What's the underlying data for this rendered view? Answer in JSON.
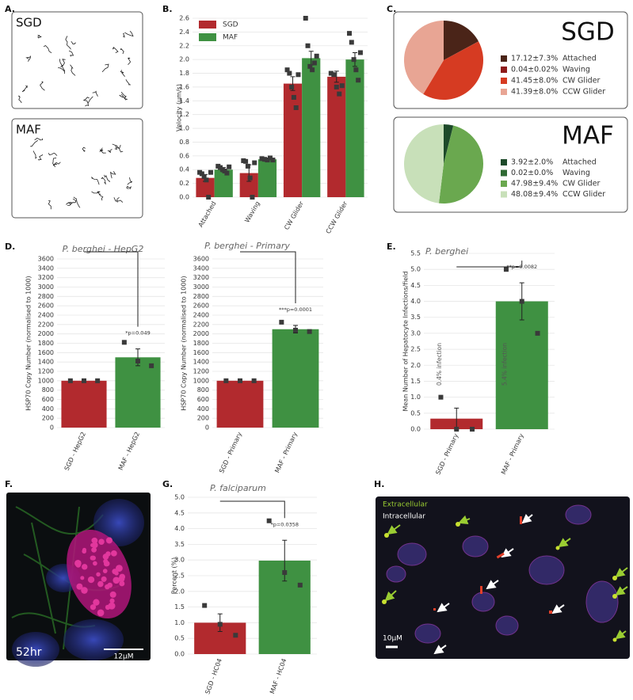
{
  "panel_labels": [
    "A.",
    "B.",
    "C.",
    "D.",
    "E.",
    "F.",
    "G.",
    "H."
  ],
  "images": {
    "A": {
      "labels": [
        "SGD",
        "MAF"
      ]
    },
    "F": {
      "labels": [
        "52hr",
        "12µM"
      ]
    },
    "H": {
      "labels": [
        "Extracellular",
        "Intracellular",
        "10µM"
      ]
    }
  },
  "chart_data": [
    {
      "type": "bar",
      "ylabel": "Velocity (µm/s)",
      "categories": [
        "Attached",
        "Waving",
        "CW Glider",
        "CCW Glider"
      ],
      "series": [
        {
          "name": "SGD",
          "color": "#b22a2e",
          "values": [
            0.28,
            0.35,
            1.65,
            1.75
          ],
          "errors": [
            0.05,
            0.12,
            0.1,
            0.08
          ],
          "points": [
            [
              0.36,
              0.34,
              0.3,
              0.25,
              0,
              0.36
            ],
            [
              0.53,
              0.52,
              0.45,
              0.28,
              0,
              0.5
            ],
            [
              1.85,
              1.8,
              1.6,
              1.45,
              1.3,
              1.78
            ],
            [
              1.8,
              1.78,
              1.6,
              1.5,
              1.62
            ]
          ]
        },
        {
          "name": "MAF",
          "color": "#3f9142",
          "values": [
            0.4,
            0.55,
            2.02,
            2
          ],
          "errors": [
            0.03,
            0.02,
            0.1,
            0.1
          ],
          "points": [
            [
              0.45,
              0.43,
              0.4,
              0.38,
              0.35,
              0.44
            ],
            [
              0.56,
              0.55,
              0.54,
              0.57,
              0.54
            ],
            [
              2.6,
              2.2,
              1.9,
              1.85,
              1.95,
              2.05
            ],
            [
              2.38,
              2.25,
              2,
              1.85,
              1.7,
              2.1
            ]
          ]
        }
      ],
      "ylim": [
        0,
        2.6
      ],
      "yticks": [
        {
          "value": 0,
          "label": "0.0"
        },
        0.2,
        0.4,
        0.6,
        0.8,
        {
          "value": 1,
          "label": "1.0"
        },
        1.2,
        1.4,
        1.6,
        1.8,
        {
          "value": 2,
          "label": "2.0"
        },
        2.2,
        2.4,
        2.6
      ],
      "grid": true,
      "legend": "upper left"
    },
    {
      "type": "pie",
      "title": "SGD",
      "categories": [
        "Attached",
        "Waving",
        "CW Glider",
        "CCW Glider"
      ],
      "values": [
        17.12,
        0.04,
        41.45,
        41.39
      ],
      "value_labels": [
        "17.12±7.3%",
        "0.04±0.02%",
        "41.45±8.0%",
        "41.39±8.0%"
      ],
      "colors": [
        "#4a2418",
        "#8e1b1b",
        "#d63b22",
        "#e8a594"
      ]
    },
    {
      "type": "pie",
      "title": "MAF",
      "categories": [
        "Attached",
        "Waving",
        "CW Glider",
        "CCW Glider"
      ],
      "values": [
        3.92,
        0.02,
        47.98,
        48.08
      ],
      "value_labels": [
        "3.92±2.0%",
        "0.02±0.0%",
        "47.98±9.4%",
        "48.08±9.4%"
      ],
      "colors": [
        "#1d4a2a",
        "#2f6a33",
        "#6aa84f",
        "#c8e0b9"
      ]
    },
    {
      "type": "bar",
      "title": "P. berghei - HepG2",
      "ylabel": "HSP70 Copy Number (normalised to 1000)",
      "categories": [
        "SGD - HepG2",
        "MAF - HepG2"
      ],
      "values": [
        1000,
        1500
      ],
      "errors": [
        0,
        180
      ],
      "points": [
        [
          1000,
          1000,
          1000
        ],
        [
          1820,
          1420,
          1320
        ]
      ],
      "colors": [
        "#b22a2e",
        "#3f9142"
      ],
      "annotation": "*p=0.049",
      "ylim": [
        0,
        3600
      ],
      "yticks": [
        0,
        200,
        400,
        600,
        800,
        1000,
        1200,
        1400,
        1600,
        1800,
        2000,
        2200,
        2400,
        2600,
        2800,
        3000,
        3200,
        3400,
        3600
      ],
      "grid": true
    },
    {
      "type": "bar",
      "title": "P. berghei - Primary",
      "ylabel": "HSP70 Copy Number (normalised to 1000)",
      "categories": [
        "SGD - Primary",
        "MAF - Primary"
      ],
      "values": [
        1000,
        2100
      ],
      "errors": [
        0,
        80
      ],
      "points": [
        [
          1000,
          1000,
          1000
        ],
        [
          2250,
          2080,
          2050
        ]
      ],
      "colors": [
        "#b22a2e",
        "#3f9142"
      ],
      "annotation": "***p=0.0001",
      "ylim": [
        0,
        3600
      ],
      "yticks": [
        0,
        200,
        400,
        600,
        800,
        1000,
        1200,
        1400,
        1600,
        1800,
        2000,
        2200,
        2400,
        2600,
        2800,
        3000,
        3200,
        3400,
        3600
      ],
      "grid": true
    },
    {
      "type": "bar",
      "title": "P. berghei",
      "ylabel": "Mean Number of Hepatocyte Infections/field",
      "categories": [
        "SGD - Primary",
        "MAF - Primary"
      ],
      "values": [
        0.33,
        4
      ],
      "errors": [
        0.33,
        0.58
      ],
      "points": [
        [
          1,
          0,
          0
        ],
        [
          5,
          4,
          3
        ]
      ],
      "colors": [
        "#b22a2e",
        "#3f9142"
      ],
      "annotation": "**p=0.0082",
      "notes": [
        "0.4% infection",
        "5.4% infection"
      ],
      "ylim": [
        0,
        5.5
      ],
      "yticks": [
        {
          "value": 0,
          "label": "0.0"
        },
        0.5,
        {
          "value": 1,
          "label": "1.0"
        },
        1.5,
        {
          "value": 2,
          "label": "2.0"
        },
        2.5,
        {
          "value": 3,
          "label": "3.0"
        },
        3.5,
        {
          "value": 4,
          "label": "4.0"
        },
        4.5,
        {
          "value": 5,
          "label": "5.0"
        },
        5.5
      ],
      "grid": true
    },
    {
      "type": "bar",
      "title": "P. falciparum",
      "ylabel": "Percent (%)",
      "categories": [
        "SGD - HC04",
        "MAF - HC04"
      ],
      "values": [
        1,
        2.98
      ],
      "errors": [
        0.28,
        0.65
      ],
      "points": [
        [
          1.55,
          0.95,
          0.6
        ],
        [
          4.25,
          2.6,
          2.2
        ]
      ],
      "colors": [
        "#b22a2e",
        "#3f9142"
      ],
      "annotation": "*p=0.0358",
      "ylim": [
        0,
        5
      ],
      "yticks": [
        {
          "value": 0,
          "label": "0.0"
        },
        0.5,
        {
          "value": 1,
          "label": "1.0"
        },
        1.5,
        {
          "value": 2,
          "label": "2.0"
        },
        2.5,
        {
          "value": 3,
          "label": "3.0"
        },
        3.5,
        {
          "value": 4,
          "label": "4.0"
        },
        4.5,
        {
          "value": 5,
          "label": "5.0"
        }
      ],
      "grid": true
    }
  ]
}
